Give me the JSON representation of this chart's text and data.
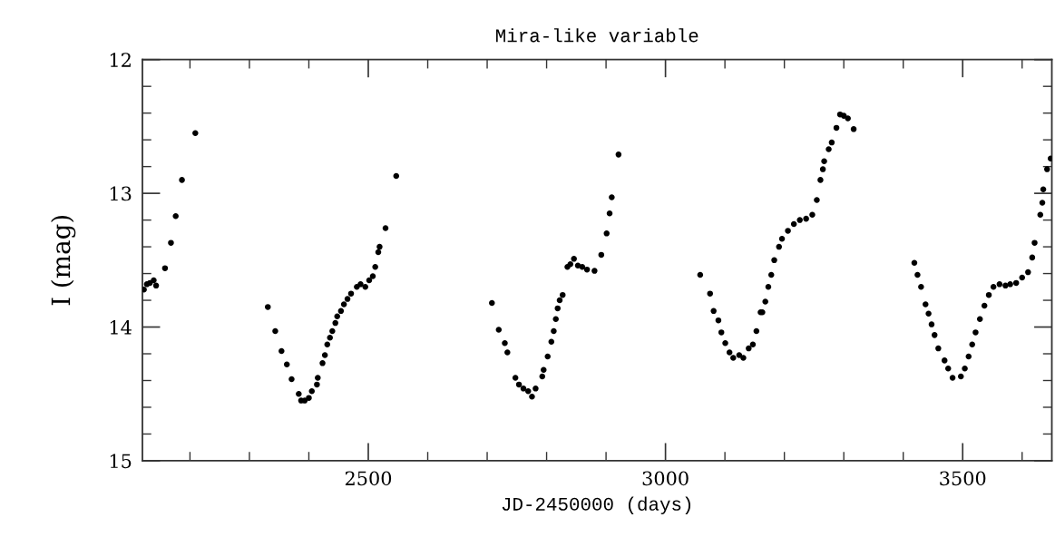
{
  "chart_data": {
    "type": "scatter",
    "title": "Mira-like variable",
    "xlabel": "JD-2450000 (days)",
    "ylabel": "I (mag)",
    "xlim": [
      2120,
      3650
    ],
    "ylim": [
      15,
      12
    ],
    "xticks": [
      {
        "value": 2200,
        "label": null
      },
      {
        "value": 2300,
        "label": null
      },
      {
        "value": 2400,
        "label": null
      },
      2500,
      {
        "value": 2600,
        "label": null
      },
      {
        "value": 2700,
        "label": null
      },
      {
        "value": 2800,
        "label": null
      },
      {
        "value": 2900,
        "label": null
      },
      3000,
      {
        "value": 3100,
        "label": null
      },
      {
        "value": 3200,
        "label": null
      },
      {
        "value": 3300,
        "label": null
      },
      {
        "value": 3400,
        "label": null
      },
      3500,
      {
        "value": 3600,
        "label": null
      }
    ],
    "yticks": [
      12,
      {
        "value": 12.2,
        "label": null
      },
      {
        "value": 12.4,
        "label": null
      },
      {
        "value": 12.6,
        "label": null
      },
      {
        "value": 12.8,
        "label": null
      },
      13,
      {
        "value": 13.2,
        "label": null
      },
      {
        "value": 13.4,
        "label": null
      },
      {
        "value": 13.6,
        "label": null
      },
      {
        "value": 13.8,
        "label": null
      },
      14,
      {
        "value": 14.2,
        "label": null
      },
      {
        "value": 14.4,
        "label": null
      },
      {
        "value": 14.6,
        "label": null
      },
      {
        "value": 14.8,
        "label": null
      },
      15
    ],
    "marker": "circle",
    "grid": false,
    "series": [
      {
        "color": "#000000",
        "x": [
          2122.5,
          2127.5,
          2132.6,
          2139,
          2143,
          2158,
          2168,
          2176,
          2186.5,
          2209,
          2331,
          2343.5,
          2354,
          2363,
          2371,
          2383,
          2387,
          2393,
          2400,
          2405,
          2413.6,
          2415,
          2423,
          2427,
          2431,
          2435.5,
          2439.5,
          2444.6,
          2447.7,
          2454,
          2459,
          2465,
          2471,
          2480.7,
          2487,
          2495,
          2501.5,
          2507.6,
          2511.7,
          2516.8,
          2519,
          2529,
          2547,
          2708,
          2719.5,
          2729.7,
          2734,
          2747.5,
          2753.5,
          2761,
          2769,
          2775.4,
          2781.5,
          2792.7,
          2795,
          2801.8,
          2808,
          2812,
          2815.5,
          2818.6,
          2822,
          2827,
          2835,
          2840,
          2846,
          2852.6,
          2860,
          2868,
          2880.6,
          2892,
          2901,
          2906,
          2909.6,
          2921,
          3058.4,
          3075,
          3081,
          3089,
          3094,
          3100.6,
          3107.7,
          3114,
          3124,
          3131,
          3140,
          3147,
          3153,
          3160,
          3163,
          3168,
          3173,
          3178,
          3183,
          3191,
          3196,
          3206,
          3216,
          3226,
          3236.6,
          3247,
          3254.6,
          3260.7,
          3264.8,
          3267,
          3274.6,
          3279.7,
          3287.6,
          3293.7,
          3300,
          3306.9,
          3316.6,
          3418.7,
          3424,
          3430,
          3437.5,
          3442.6,
          3447.7,
          3452.7,
          3459,
          3469.5,
          3475.6,
          3483,
          3497,
          3503.6,
          3510,
          3516,
          3521.7,
          3529,
          3536.6,
          3544,
          3551.8,
          3562,
          3572,
          3580,
          3590,
          3600,
          3610,
          3617,
          3621,
          3630.6,
          3634,
          3635.6,
          3642,
          3648
        ],
        "values": [
          13.72,
          13.68,
          13.67,
          13.65,
          13.69,
          13.56,
          13.37,
          13.17,
          12.9,
          12.55,
          13.85,
          14.03,
          14.18,
          14.28,
          14.39,
          14.5,
          14.55,
          14.55,
          14.53,
          14.48,
          14.43,
          14.38,
          14.27,
          14.21,
          14.13,
          14.08,
          14.03,
          13.97,
          13.92,
          13.88,
          13.83,
          13.79,
          13.75,
          13.7,
          13.68,
          13.7,
          13.65,
          13.62,
          13.55,
          13.44,
          13.4,
          13.26,
          12.87,
          13.82,
          14.02,
          14.12,
          14.19,
          14.38,
          14.43,
          14.46,
          14.48,
          14.52,
          14.46,
          14.37,
          14.32,
          14.22,
          14.11,
          14.03,
          13.94,
          13.86,
          13.8,
          13.76,
          13.55,
          13.53,
          13.49,
          13.54,
          13.55,
          13.57,
          13.58,
          13.46,
          13.3,
          13.15,
          13.03,
          12.71,
          13.61,
          13.75,
          13.88,
          13.95,
          14.04,
          14.12,
          14.19,
          14.23,
          14.21,
          14.23,
          14.16,
          14.13,
          14.03,
          13.89,
          13.89,
          13.81,
          13.7,
          13.61,
          13.5,
          13.4,
          13.34,
          13.28,
          13.23,
          13.2,
          13.19,
          13.16,
          13.05,
          12.9,
          12.82,
          12.76,
          12.67,
          12.62,
          12.51,
          12.41,
          12.42,
          12.44,
          12.52,
          13.52,
          13.61,
          13.7,
          13.83,
          13.9,
          13.98,
          14.06,
          14.16,
          14.25,
          14.31,
          14.38,
          14.37,
          14.31,
          14.22,
          14.13,
          14.04,
          13.94,
          13.84,
          13.76,
          13.7,
          13.68,
          13.69,
          13.68,
          13.67,
          13.63,
          13.59,
          13.48,
          13.37,
          13.16,
          13.07,
          12.97,
          12.82,
          12.74
        ]
      }
    ]
  }
}
